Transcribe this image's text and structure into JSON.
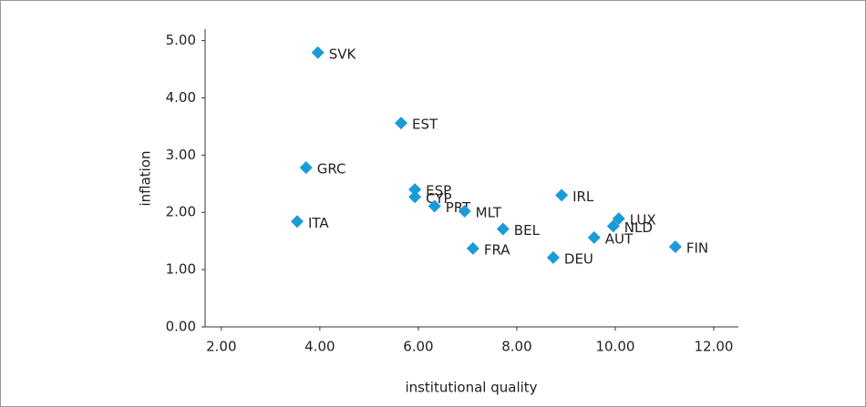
{
  "chart_data": {
    "type": "scatter",
    "xlabel": "institutional quality",
    "ylabel": "inflation",
    "labels": [
      "SVK",
      "EST",
      "GRC",
      "ESP",
      "CYP",
      "PRT",
      "MLT",
      "ITA",
      "IRL",
      "BEL",
      "LUX",
      "NLD",
      "AUT",
      "FIN",
      "FRA",
      "DEU"
    ],
    "x": [
      3.96,
      5.65,
      3.72,
      5.93,
      5.93,
      6.33,
      6.94,
      3.54,
      8.91,
      7.72,
      10.07,
      9.96,
      9.57,
      11.22,
      7.11,
      8.74
    ],
    "values": [
      4.79,
      3.56,
      2.78,
      2.4,
      2.27,
      2.11,
      2.02,
      1.84,
      2.3,
      1.71,
      1.89,
      1.76,
      1.56,
      1.4,
      1.37,
      1.21
    ],
    "color": "#1a9bd7",
    "xlim": [
      1.67,
      12.5
    ],
    "xticks": [
      {
        "value": 2,
        "label": "2.00"
      },
      {
        "value": 4,
        "label": "4.00"
      },
      {
        "value": 6,
        "label": "6.00"
      },
      {
        "value": 8,
        "label": "8.00"
      },
      {
        "value": 10,
        "label": "10.00"
      },
      {
        "value": 12,
        "label": "12.00"
      }
    ],
    "ylim": [
      0,
      5.2
    ],
    "yticks": [
      {
        "value": 0,
        "label": "0.00"
      },
      {
        "value": 1,
        "label": "1.00"
      },
      {
        "value": 2,
        "label": "2.00"
      },
      {
        "value": 3,
        "label": "3.00"
      },
      {
        "value": 4,
        "label": "4.00"
      },
      {
        "value": 5,
        "label": "5.00"
      }
    ],
    "grid": false
  }
}
